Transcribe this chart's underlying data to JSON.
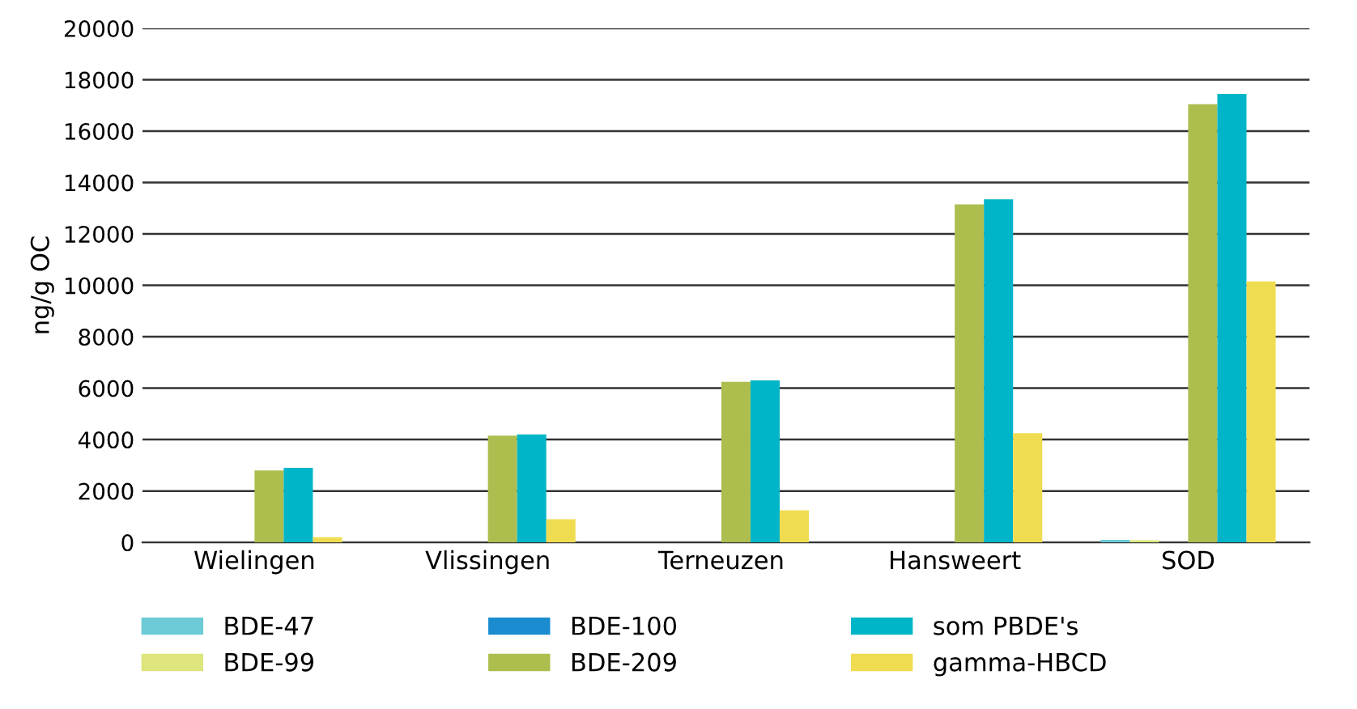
{
  "chart_data": {
    "type": "bar",
    "ylabel": "ng/g OC",
    "categories": [
      "Wielingen",
      "Vlissingen",
      "Terneuzen",
      "Hansweert",
      "SOD"
    ],
    "series": [
      {
        "name": "BDE-47",
        "color": "#6ccbd6",
        "values": [
          null,
          null,
          null,
          null,
          100
        ]
      },
      {
        "name": "BDE-99",
        "color": "#dde57c",
        "values": [
          null,
          null,
          null,
          null,
          80
        ]
      },
      {
        "name": "BDE-100",
        "color": "#1a8ccf",
        "values": [
          null,
          null,
          null,
          null,
          null
        ]
      },
      {
        "name": "BDE-209",
        "color": "#adbe4e",
        "values": [
          2800,
          4150,
          6250,
          13150,
          17050
        ]
      },
      {
        "name": "som PBDE's",
        "color": "#00b5c8",
        "values": [
          2900,
          4200,
          6300,
          13350,
          17450
        ]
      },
      {
        "name": "gamma-HBCD",
        "color": "#f0dc50",
        "values": [
          200,
          900,
          1250,
          4250,
          10150
        ]
      }
    ],
    "ylim": [
      0,
      20000
    ],
    "yticks": [
      0,
      2000,
      4000,
      6000,
      8000,
      10000,
      12000,
      14000,
      16000,
      18000,
      20000
    ],
    "grid": "y",
    "legend": "bottom"
  }
}
